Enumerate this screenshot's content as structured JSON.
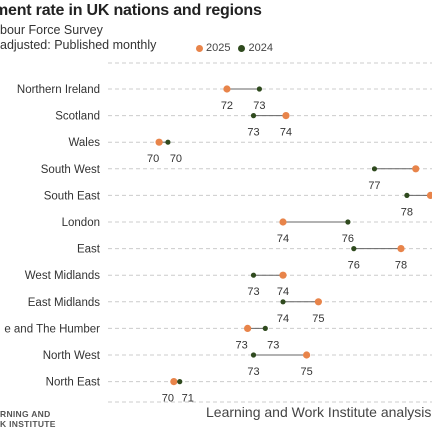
{
  "title": "ment rate in UK nations and regions",
  "subtitle_line1": "bour Force Survey",
  "subtitle_line2": "adjusted: Published monthly",
  "logo_line1": "RNING AND",
  "logo_line2": "K INSTITUTE",
  "source": "Learning and Work Institute analysis of",
  "chart_data": {
    "type": "dumbbell",
    "series": [
      {
        "name": "2025",
        "color": "#E8844A"
      },
      {
        "name": "2024",
        "color": "#2F4A1E"
      }
    ],
    "categories": [
      "Northern Ireland",
      "Scotland",
      "Wales",
      "South West",
      "South East",
      "London",
      "East",
      "West Midlands",
      "East Midlands",
      "e and The Humber",
      "North West",
      "North East"
    ],
    "values_2025": [
      72.1,
      74.1,
      69.8,
      78.5,
      79.0,
      74.0,
      78.0,
      74.0,
      75.2,
      72.8,
      74.8,
      70.3
    ],
    "values_2024": [
      73.2,
      73.0,
      70.1,
      77.1,
      78.2,
      76.2,
      76.4,
      73.0,
      74.0,
      73.4,
      73.0,
      70.5
    ],
    "label_2025": [
      "72",
      "74",
      "70",
      "",
      "",
      "74",
      "78",
      "74",
      "75",
      "73",
      "75",
      "70"
    ],
    "label_2024": [
      "73",
      "73",
      "70",
      "77",
      "78",
      "76",
      "76",
      "73",
      "74",
      "73",
      "73",
      "71"
    ],
    "grid": "horizontal-dashed"
  }
}
